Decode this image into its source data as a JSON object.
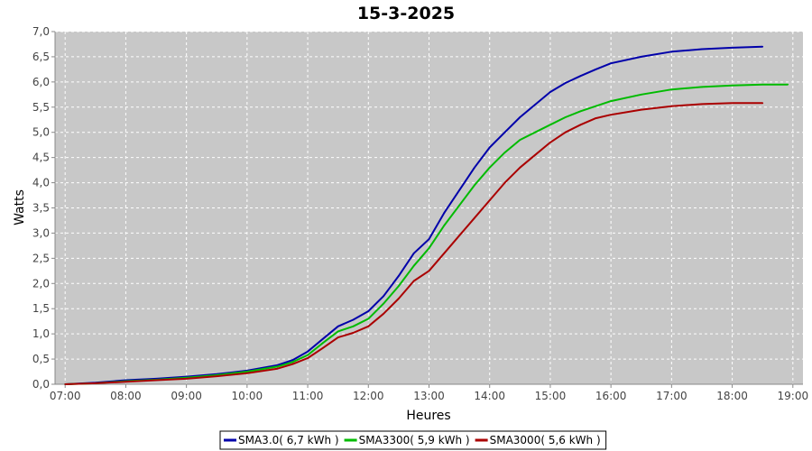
{
  "chart_data": {
    "type": "line",
    "title": "15-3-2025",
    "xlabel": "Heures",
    "ylabel": "Watts",
    "x_ticks": [
      "07:00",
      "08:00",
      "09:00",
      "10:00",
      "11:00",
      "12:00",
      "13:00",
      "14:00",
      "15:00",
      "16:00",
      "17:00",
      "18:00",
      "19:00"
    ],
    "y_ticks": [
      "0,0",
      "0,5",
      "1,0",
      "1,5",
      "2,0",
      "2,5",
      "3,0",
      "3,5",
      "4,0",
      "4,5",
      "5,0",
      "5,5",
      "6,0",
      "6,5",
      "7,0"
    ],
    "xlim": [
      "06:50",
      "19:10"
    ],
    "ylim": [
      0,
      7.0
    ],
    "grid": true,
    "background": "#c8c8c8",
    "legend_position": "bottom",
    "series": [
      {
        "name": "SMA3.0( 6,7 kWh )",
        "color": "#0000aa",
        "x": [
          "07:00",
          "07:30",
          "08:00",
          "08:30",
          "09:00",
          "09:30",
          "10:00",
          "10:30",
          "10:45",
          "11:00",
          "11:15",
          "11:30",
          "11:45",
          "12:00",
          "12:15",
          "12:30",
          "12:45",
          "13:00",
          "13:15",
          "13:30",
          "13:45",
          "14:00",
          "14:15",
          "14:30",
          "14:45",
          "15:00",
          "15:15",
          "15:30",
          "15:45",
          "16:00",
          "16:30",
          "17:00",
          "17:30",
          "18:00",
          "18:30"
        ],
        "values": [
          0.0,
          0.03,
          0.08,
          0.11,
          0.15,
          0.2,
          0.27,
          0.38,
          0.48,
          0.65,
          0.9,
          1.15,
          1.28,
          1.45,
          1.75,
          2.15,
          2.6,
          2.88,
          3.4,
          3.85,
          4.3,
          4.7,
          5.0,
          5.3,
          5.55,
          5.8,
          5.98,
          6.12,
          6.25,
          6.37,
          6.5,
          6.6,
          6.65,
          6.68,
          6.7
        ]
      },
      {
        "name": "SMA3300( 5,9 kWh )",
        "color": "#00bb00",
        "x": [
          "07:00",
          "07:30",
          "08:00",
          "08:30",
          "09:00",
          "09:30",
          "10:00",
          "10:30",
          "10:45",
          "11:00",
          "11:15",
          "11:30",
          "11:45",
          "12:00",
          "12:15",
          "12:30",
          "12:45",
          "13:00",
          "13:15",
          "13:30",
          "13:45",
          "14:00",
          "14:15",
          "14:30",
          "14:45",
          "15:00",
          "15:15",
          "15:30",
          "15:45",
          "16:00",
          "16:30",
          "17:00",
          "17:30",
          "18:00",
          "18:30",
          "18:55"
        ],
        "values": [
          0.0,
          0.02,
          0.06,
          0.09,
          0.13,
          0.18,
          0.25,
          0.35,
          0.44,
          0.58,
          0.82,
          1.05,
          1.15,
          1.3,
          1.6,
          1.95,
          2.35,
          2.7,
          3.15,
          3.55,
          3.95,
          4.3,
          4.6,
          4.85,
          5.0,
          5.15,
          5.3,
          5.42,
          5.52,
          5.62,
          5.75,
          5.85,
          5.9,
          5.93,
          5.95,
          5.95
        ]
      },
      {
        "name": "SMA3000( 5,6 kWh )",
        "color": "#aa0000",
        "x": [
          "07:00",
          "07:30",
          "08:00",
          "08:30",
          "09:00",
          "09:30",
          "10:00",
          "10:30",
          "10:45",
          "11:00",
          "11:15",
          "11:30",
          "11:45",
          "12:00",
          "12:15",
          "12:30",
          "12:45",
          "13:00",
          "13:15",
          "13:30",
          "13:45",
          "14:00",
          "14:15",
          "14:30",
          "14:45",
          "15:00",
          "15:15",
          "15:30",
          "15:45",
          "16:00",
          "16:30",
          "17:00",
          "17:30",
          "18:00",
          "18:30"
        ],
        "values": [
          0.0,
          0.02,
          0.05,
          0.08,
          0.11,
          0.16,
          0.22,
          0.31,
          0.4,
          0.52,
          0.72,
          0.93,
          1.02,
          1.15,
          1.4,
          1.7,
          2.05,
          2.25,
          2.6,
          2.95,
          3.3,
          3.65,
          4.0,
          4.3,
          4.55,
          4.8,
          5.0,
          5.15,
          5.28,
          5.35,
          5.45,
          5.52,
          5.56,
          5.58,
          5.58
        ]
      }
    ]
  }
}
